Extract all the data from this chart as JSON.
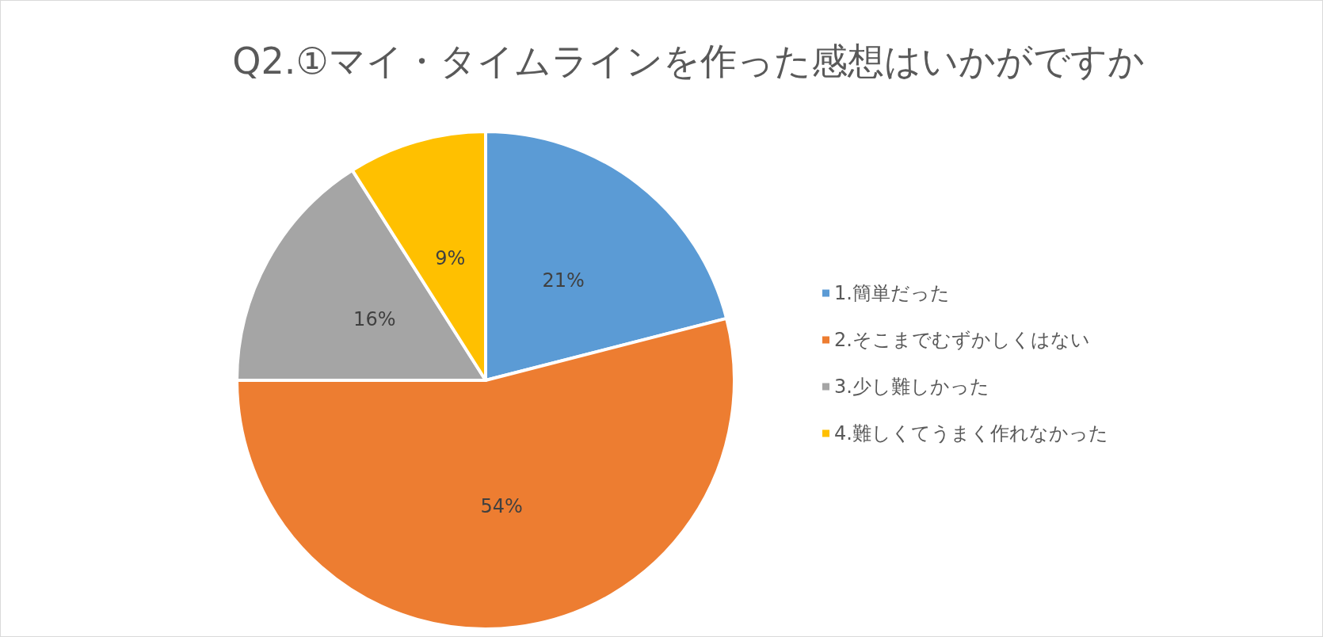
{
  "chart_data": {
    "type": "pie",
    "title": "Q2.①マイ・タイムラインを作った感想はいかがですか",
    "categories": [
      "1.簡単だった",
      "2.そこまでむずかしくはない",
      "3.少し難しかった",
      "4.難しくてうまく作れなかった"
    ],
    "values": [
      21,
      54,
      16,
      9
    ],
    "colors": [
      "#5b9bd5",
      "#ed7d31",
      "#a5a5a5",
      "#ffc000"
    ],
    "value_labels": [
      "21%",
      "54%",
      "16%",
      "9%"
    ],
    "legend": "right"
  }
}
